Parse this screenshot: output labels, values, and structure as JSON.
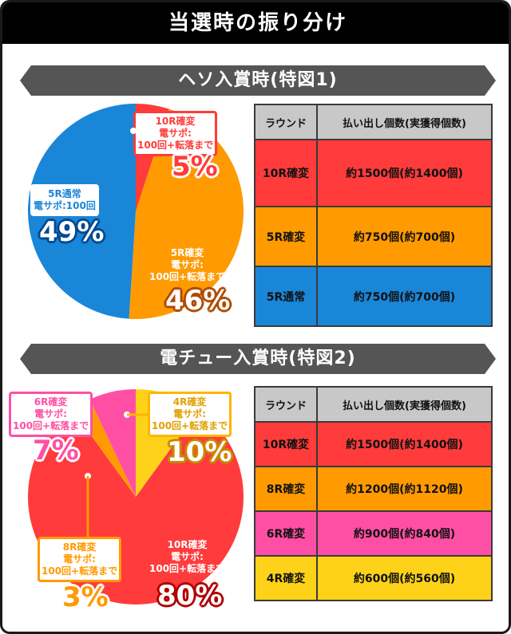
{
  "page_title": "当選時の振り分け",
  "section1": {
    "banner": "ヘソ入賞時(特図1)",
    "slices": [
      {
        "label_l1": "10R確変",
        "label_l2": "電サポ:",
        "label_l3": "100回+転落まで",
        "percent": "5%",
        "value": 5,
        "color": "#ff3b3b"
      },
      {
        "label_l1": "5R確変",
        "label_l2": "電サポ:",
        "label_l3": "100回+転落まで",
        "percent": "46%",
        "value": 46,
        "color": "#ff9a00"
      },
      {
        "label_l1": "5R通常",
        "label_l2": "電サポ:100回",
        "label_l3": "",
        "percent": "49%",
        "value": 49,
        "color": "#1a86d8"
      }
    ],
    "table": {
      "col1": "ラウンド",
      "col2": "払い出し個数(実獲得個数)",
      "rows": [
        {
          "round": "10R確変",
          "payout": "約1500個(約1400個)",
          "color": "#ff3b3b"
        },
        {
          "round": "5R確変",
          "payout": "約750個(約700個)",
          "color": "#ff9a00"
        },
        {
          "round": "5R通常",
          "payout": "約750個(約700個)",
          "color": "#1a86d8"
        }
      ]
    }
  },
  "section2": {
    "banner": "電チュー入賞時(特図2)",
    "slices": [
      {
        "label_l1": "4R確変",
        "label_l2": "電サポ:",
        "label_l3": "100回+転落まで",
        "percent": "10%",
        "value": 10,
        "color": "#ffd21a"
      },
      {
        "label_l1": "10R確変",
        "label_l2": "電サポ:",
        "label_l3": "100回+転落まで",
        "percent": "80%",
        "value": 80,
        "color": "#ff3b3b"
      },
      {
        "label_l1": "8R確変",
        "label_l2": "電サポ:",
        "label_l3": "100回+転落まで",
        "percent": "3%",
        "value": 3,
        "color": "#ff9a00"
      },
      {
        "label_l1": "6R確変",
        "label_l2": "電サポ:",
        "label_l3": "100回+転落まで",
        "percent": "7%",
        "value": 7,
        "color": "#ff4fa5"
      }
    ],
    "table": {
      "col1": "ラウンド",
      "col2": "払い出し個数(実獲得個数)",
      "rows": [
        {
          "round": "10R確変",
          "payout": "約1500個(約1400個)",
          "color": "#ff3b3b"
        },
        {
          "round": "8R確変",
          "payout": "約1200個(約1120個)",
          "color": "#ff9a00"
        },
        {
          "round": "6R確変",
          "payout": "約900個(約840個)",
          "color": "#ff4fa5"
        },
        {
          "round": "4R確変",
          "payout": "約600個(約560個)",
          "color": "#ffd21a"
        }
      ]
    }
  }
}
